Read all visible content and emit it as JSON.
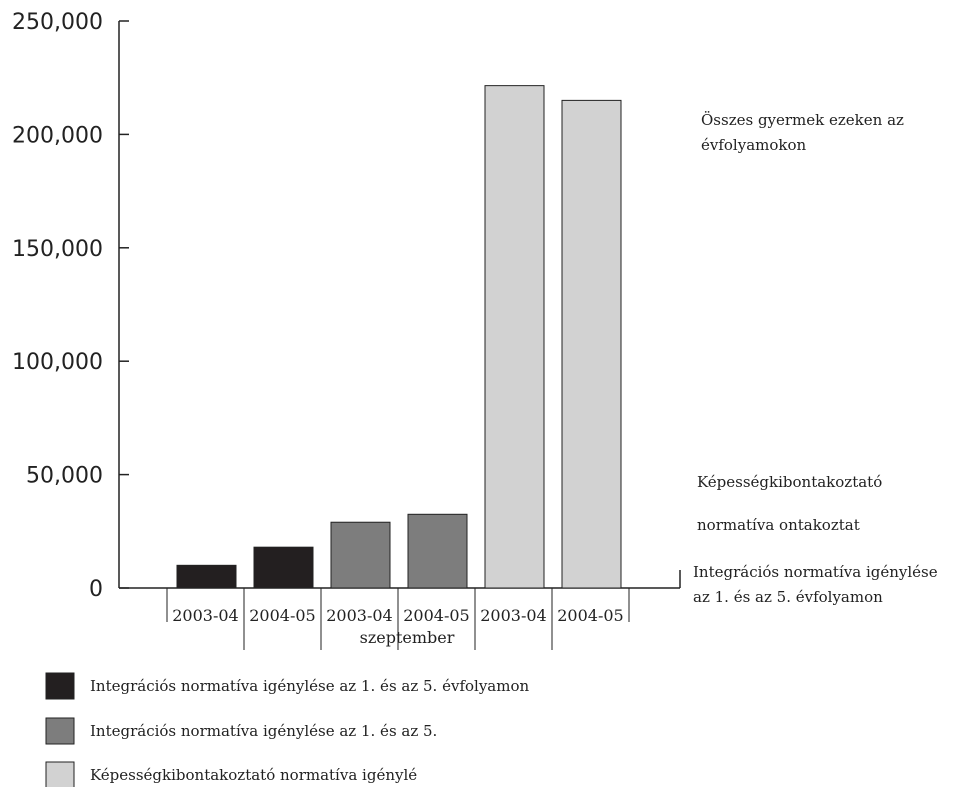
{
  "chart_data": {
    "type": "bar",
    "categories": [
      "2003-04",
      "2004-05",
      "2003-04",
      "2004-05",
      "2003-04",
      "2004-05"
    ],
    "group_label": "szeptember",
    "values": [
      10000,
      18000,
      29000,
      32500,
      221500,
      215000
    ],
    "bar_series_index": [
      0,
      0,
      1,
      1,
      2,
      2
    ],
    "ylim": [
      0,
      250000
    ],
    "yticks": [
      0,
      50000,
      100000,
      150000,
      200000,
      250000
    ],
    "ytick_labels": [
      "0",
      "50,000",
      "100,000",
      "150,000",
      "200,000",
      "250,000"
    ],
    "series": [
      {
        "name": "Integrációs normatíva igénylése az 1. és az 5. évfolyamon",
        "color": "#231f20"
      },
      {
        "name": "Integrációs normatíva igénylése az 1. és az 5.",
        "color": "#7d7d7d"
      },
      {
        "name": "Képességkibontakoztató normatíva igénylé",
        "color": "#d2d2d2"
      }
    ],
    "annotations": {
      "total_line1": "Összes gyermek ezeken az",
      "total_line2": "évfolyamokon",
      "kepesseg_line1": "Képességkibontakoztató",
      "kepesseg_line2": "normatíva ontakoztat",
      "integracio_line1": "Integrációs normatíva igénylése",
      "integracio_line2": "az 1. és az 5. évfolyamon"
    },
    "legend_placement": "bottom-left",
    "grid": false
  }
}
